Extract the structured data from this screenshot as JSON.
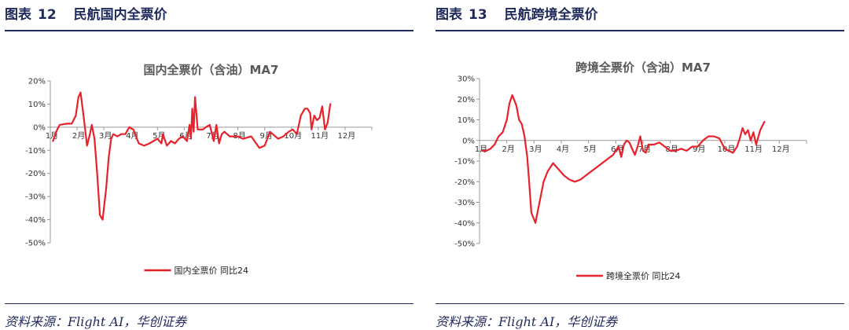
{
  "figures": [
    {
      "label": "图表",
      "number": "12",
      "title": "民航国内全票价",
      "source": "资料来源：Flight AI，华创证券"
    },
    {
      "label": "图表",
      "number": "13",
      "title": "民航跨境全票价",
      "source": "资料来源：Flight AI，华创证券"
    }
  ],
  "colors": {
    "series": "#e8212b",
    "axis": "#999999",
    "heading": "#1f2a5c",
    "chart_title": "#595959"
  },
  "chart_data": [
    {
      "type": "line",
      "title": "国内全票价（含油）MA7",
      "x_axis": {
        "min": 0,
        "max": 12,
        "unit": "month",
        "tick_labels": [
          "1月",
          "2月",
          "3月",
          "4月",
          "5月",
          "6月",
          "7月",
          "8月",
          "9月",
          "10月",
          "11月",
          "12月"
        ]
      },
      "ylim": [
        -0.5,
        0.2
      ],
      "y_ticks": [
        0.2,
        0.1,
        0,
        -0.1,
        -0.2,
        -0.3,
        -0.4,
        -0.5
      ],
      "y_tick_labels": [
        "20%",
        "10%",
        "0%",
        "-10%",
        "-20%",
        "-30%",
        "-40%",
        "-50%"
      ],
      "grid": false,
      "legend_position": "bottom",
      "series": [
        {
          "name": "国内全票价 同比24",
          "x": [
            0.1,
            0.22,
            0.35,
            0.6,
            0.8,
            0.95,
            1.05,
            1.13,
            1.25,
            1.37,
            1.48,
            1.55,
            1.65,
            1.75,
            1.85,
            1.95,
            2.08,
            2.18,
            2.27,
            2.35,
            2.5,
            2.65,
            2.8,
            2.95,
            3.1,
            3.3,
            3.5,
            3.7,
            3.85,
            4.0,
            4.15,
            4.2,
            4.35,
            4.5,
            4.65,
            4.8,
            4.95,
            5.1,
            5.2,
            5.25,
            5.3,
            5.35,
            5.4,
            5.5,
            5.6,
            5.7,
            5.8,
            5.95,
            6.1,
            6.2,
            6.3,
            6.4,
            6.5,
            6.6,
            6.7,
            6.85,
            7.0,
            7.2,
            7.5,
            7.8,
            8.0,
            8.2,
            8.5,
            8.7,
            8.9,
            9.05,
            9.2,
            9.35,
            9.5,
            9.6,
            9.7,
            9.75,
            9.85,
            9.95,
            10.05,
            10.15,
            10.25,
            10.35,
            10.45
          ],
          "y": [
            -0.06,
            -0.02,
            0.01,
            0.015,
            0.015,
            0.05,
            0.13,
            0.15,
            0.04,
            -0.08,
            -0.03,
            0.01,
            -0.05,
            -0.2,
            -0.38,
            -0.4,
            -0.27,
            -0.13,
            -0.05,
            -0.03,
            -0.04,
            -0.03,
            -0.03,
            0.0,
            -0.01,
            -0.07,
            -0.08,
            -0.07,
            -0.06,
            -0.05,
            -0.07,
            -0.03,
            -0.08,
            -0.06,
            -0.07,
            -0.05,
            -0.04,
            -0.06,
            0.01,
            -0.05,
            0.08,
            -0.02,
            0.13,
            -0.01,
            -0.01,
            -0.01,
            0.0,
            0.01,
            -0.06,
            0.01,
            -0.07,
            -0.03,
            -0.02,
            -0.03,
            -0.04,
            -0.04,
            -0.04,
            -0.05,
            -0.04,
            -0.09,
            -0.08,
            -0.02,
            -0.05,
            -0.04,
            -0.02,
            -0.01,
            -0.03,
            0.05,
            0.08,
            0.08,
            0.06,
            -0.01,
            0.05,
            0.03,
            0.04,
            0.09,
            -0.01,
            0.02,
            0.1
          ]
        }
      ]
    },
    {
      "type": "line",
      "title": "跨境全票价（含油）MA7",
      "x_axis": {
        "min": 0,
        "max": 12,
        "unit": "month",
        "tick_labels": [
          "1月",
          "2月",
          "3月",
          "4月",
          "5月",
          "6月",
          "7月",
          "8月",
          "9月",
          "10月",
          "11月",
          "12月"
        ]
      },
      "ylim": [
        -0.5,
        0.3
      ],
      "y_ticks": [
        0.3,
        0.2,
        0.1,
        0,
        -0.1,
        -0.2,
        -0.3,
        -0.4,
        -0.5
      ],
      "y_tick_labels": [
        "30%",
        "20%",
        "10%",
        "0%",
        "-10%",
        "-20%",
        "-30%",
        "-40%",
        "-50%"
      ],
      "grid": false,
      "legend_position": "bottom",
      "series": [
        {
          "name": "跨境全票价 同比24",
          "x": [
            0.1,
            0.25,
            0.4,
            0.55,
            0.7,
            0.85,
            1.0,
            1.1,
            1.2,
            1.35,
            1.45,
            1.55,
            1.65,
            1.75,
            1.82,
            1.9,
            2.05,
            2.2,
            2.35,
            2.5,
            2.7,
            2.9,
            3.1,
            3.3,
            3.5,
            3.7,
            3.9,
            4.1,
            4.3,
            4.5,
            4.7,
            4.9,
            5.0,
            5.1,
            5.2,
            5.3,
            5.4,
            5.5,
            5.6,
            5.7,
            5.8,
            5.9,
            6.0,
            6.1,
            6.2,
            6.4,
            6.6,
            6.8,
            7.0,
            7.2,
            7.4,
            7.6,
            7.8,
            8.0,
            8.2,
            8.4,
            8.6,
            8.8,
            9.0,
            9.15,
            9.3,
            9.45,
            9.55,
            9.65,
            9.75,
            9.85,
            9.95,
            10.05,
            10.15,
            10.3,
            10.45
          ],
          "y": [
            -0.05,
            -0.05,
            -0.04,
            -0.02,
            0.02,
            0.04,
            0.1,
            0.18,
            0.22,
            0.17,
            0.1,
            0.08,
            0.02,
            -0.08,
            -0.2,
            -0.35,
            -0.4,
            -0.3,
            -0.2,
            -0.15,
            -0.11,
            -0.14,
            -0.17,
            -0.19,
            -0.2,
            -0.19,
            -0.17,
            -0.15,
            -0.13,
            -0.11,
            -0.09,
            -0.07,
            -0.05,
            -0.03,
            -0.08,
            -0.02,
            0.0,
            -0.01,
            -0.04,
            -0.07,
            -0.03,
            0.02,
            -0.05,
            -0.06,
            -0.02,
            -0.02,
            -0.01,
            -0.03,
            -0.05,
            -0.05,
            -0.04,
            -0.05,
            -0.03,
            -0.03,
            0.0,
            0.02,
            0.02,
            0.01,
            -0.04,
            -0.05,
            -0.06,
            -0.03,
            0.01,
            0.06,
            0.03,
            0.05,
            0.0,
            0.04,
            -0.02,
            0.05,
            0.09
          ]
        }
      ]
    }
  ]
}
